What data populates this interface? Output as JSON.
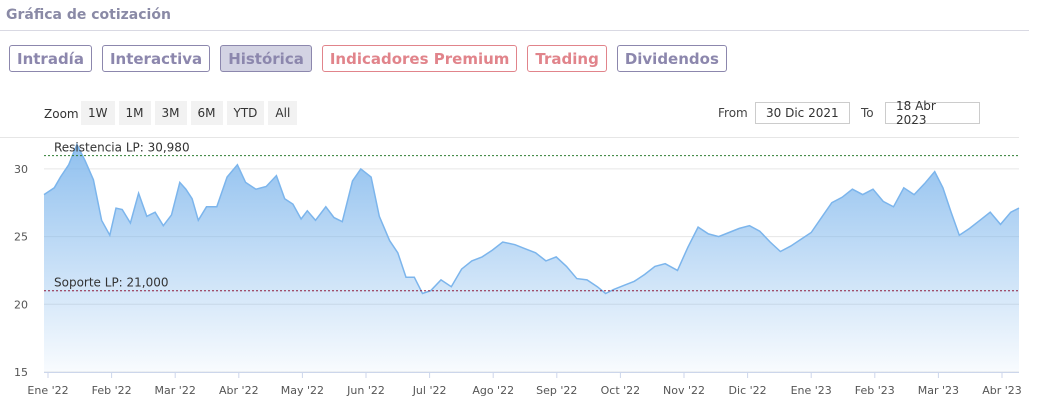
{
  "page": {
    "title": "Gráfica de cotización"
  },
  "tabs": [
    {
      "label": "Intradía",
      "active": false,
      "style": "normal"
    },
    {
      "label": "Interactiva",
      "active": false,
      "style": "normal"
    },
    {
      "label": "Histórica",
      "active": true,
      "style": "normal"
    },
    {
      "label": "Indicadores Premium",
      "active": false,
      "style": "premium"
    },
    {
      "label": "Trading",
      "active": false,
      "style": "premium"
    },
    {
      "label": "Dividendos",
      "active": false,
      "style": "normal"
    }
  ],
  "zoom": {
    "label": "Zoom",
    "buttons": [
      "1W",
      "1M",
      "3M",
      "6M",
      "YTD",
      "All"
    ]
  },
  "range": {
    "from_label": "From",
    "from_value": "30 Dic 2021",
    "to_label": "To",
    "to_value": "18 Abr 2023"
  },
  "colors": {
    "accent": "#8c87ad",
    "premium": "#e1848b",
    "line": "#7cb5ec",
    "resistance": "#2e7d32",
    "support": "#8e1b3a"
  },
  "chart_data": {
    "type": "area",
    "x_ticks": [
      "Ene '22",
      "Feb '22",
      "Mar '22",
      "Abr '22",
      "May '22",
      "Jun '22",
      "Jul '22",
      "Ago '22",
      "Sep '22",
      "Oct '22",
      "Nov '22",
      "Dic '22",
      "Ene '23",
      "Feb '23",
      "Mar '23",
      "Abr '23"
    ],
    "y_ticks": [
      15,
      20,
      25,
      30
    ],
    "ylim": [
      15,
      32.5
    ],
    "xlim": [
      "2021-12-30",
      "2023-04-18"
    ],
    "grid": true,
    "legend": "none",
    "resistance": {
      "label": "Resistencia LP: 30,980",
      "value": 30.98
    },
    "support": {
      "label": "Soporte LP: 21,000",
      "value": 21.0
    },
    "x": [
      "2021-12-30",
      "2022-01-04",
      "2022-01-07",
      "2022-01-11",
      "2022-01-15",
      "2022-01-19",
      "2022-01-23",
      "2022-01-27",
      "2022-01-31",
      "2022-02-03",
      "2022-02-06",
      "2022-02-10",
      "2022-02-14",
      "2022-02-18",
      "2022-02-22",
      "2022-02-26",
      "2022-03-02",
      "2022-03-06",
      "2022-03-09",
      "2022-03-12",
      "2022-03-15",
      "2022-03-19",
      "2022-03-24",
      "2022-03-29",
      "2022-04-03",
      "2022-04-07",
      "2022-04-12",
      "2022-04-17",
      "2022-04-22",
      "2022-04-26",
      "2022-04-30",
      "2022-05-04",
      "2022-05-07",
      "2022-05-11",
      "2022-05-16",
      "2022-05-20",
      "2022-05-24",
      "2022-05-29",
      "2022-06-02",
      "2022-06-07",
      "2022-06-11",
      "2022-06-16",
      "2022-06-20",
      "2022-06-24",
      "2022-06-28",
      "2022-07-02",
      "2022-07-06",
      "2022-07-11",
      "2022-07-16",
      "2022-07-21",
      "2022-07-26",
      "2022-07-31",
      "2022-08-05",
      "2022-08-10",
      "2022-08-16",
      "2022-08-21",
      "2022-08-26",
      "2022-08-31",
      "2022-09-05",
      "2022-09-10",
      "2022-09-15",
      "2022-09-20",
      "2022-09-25",
      "2022-09-29",
      "2022-10-03",
      "2022-10-08",
      "2022-10-13",
      "2022-10-18",
      "2022-10-23",
      "2022-10-28",
      "2022-11-03",
      "2022-11-08",
      "2022-11-13",
      "2022-11-18",
      "2022-11-23",
      "2022-11-28",
      "2022-12-03",
      "2022-12-08",
      "2022-12-13",
      "2022-12-18",
      "2022-12-23",
      "2022-12-28",
      "2023-01-02",
      "2023-01-07",
      "2023-01-12",
      "2023-01-17",
      "2023-01-22",
      "2023-01-27",
      "2023-02-01",
      "2023-02-06",
      "2023-02-11",
      "2023-02-16",
      "2023-02-21",
      "2023-02-26",
      "2023-03-03",
      "2023-03-08",
      "2023-03-12",
      "2023-03-16",
      "2023-03-20",
      "2023-03-25",
      "2023-03-30",
      "2023-04-04",
      "2023-04-09",
      "2023-04-14",
      "2023-04-18"
    ],
    "values": [
      28.1,
      28.6,
      29.4,
      30.3,
      31.8,
      30.6,
      29.2,
      26.2,
      25.1,
      27.1,
      27.0,
      26.0,
      28.2,
      26.5,
      26.8,
      25.8,
      26.6,
      29.0,
      28.5,
      27.8,
      26.2,
      27.2,
      27.2,
      29.4,
      30.3,
      29.0,
      28.5,
      28.7,
      29.5,
      27.8,
      27.4,
      26.3,
      26.9,
      26.2,
      27.2,
      26.4,
      26.1,
      29.1,
      30.0,
      29.4,
      26.5,
      24.7,
      23.8,
      22.0,
      22.0,
      20.8,
      21.0,
      21.8,
      21.3,
      22.6,
      23.2,
      23.5,
      24.0,
      24.6,
      24.4,
      24.1,
      23.8,
      23.2,
      23.5,
      22.8,
      21.9,
      21.8,
      21.3,
      20.8,
      21.1,
      21.4,
      21.7,
      22.2,
      22.8,
      23.0,
      22.5,
      24.2,
      25.7,
      25.2,
      25.0,
      25.3,
      25.6,
      25.8,
      25.4,
      24.6,
      23.9,
      24.3,
      24.8,
      25.3,
      26.4,
      27.5,
      27.9,
      28.5,
      28.1,
      28.5,
      27.6,
      27.2,
      28.6,
      28.1,
      28.9,
      29.8,
      28.6,
      26.8,
      25.1,
      25.6,
      26.2,
      26.8,
      25.9,
      26.8,
      27.1
    ]
  }
}
